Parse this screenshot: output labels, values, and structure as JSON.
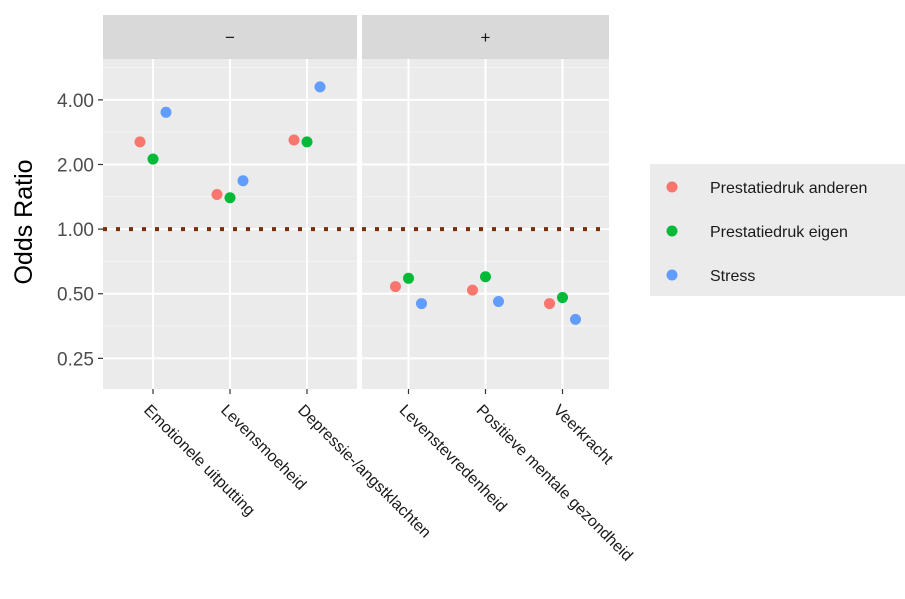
{
  "chart_data": {
    "type": "scatter",
    "ylabel": "Odds Ratio",
    "y_scale": "log2",
    "ylim": [
      0.18,
      6.2
    ],
    "yticks": [
      0.25,
      0.5,
      1.0,
      2.0,
      4.0
    ],
    "ytick_labels": [
      "0.25",
      "0.50",
      "1.00",
      "2.00",
      "4.00"
    ],
    "reference_line": {
      "y": 1.0,
      "style": "dotted",
      "color": "#7a2e0b"
    },
    "legend_position": "right",
    "grid": true,
    "series": [
      {
        "name": "Prestatiedruk anderen",
        "color": "#f8766d"
      },
      {
        "name": "Prestatiedruk eigen",
        "color": "#00ba38"
      },
      {
        "name": "Stress",
        "color": "#619cff"
      }
    ],
    "facets": [
      {
        "label": "−",
        "categories": [
          "Emotionele uitputting",
          "Levensmoeheid",
          "Depressie-/angstklachten"
        ],
        "values": [
          [
            2.55,
            2.12,
            3.5
          ],
          [
            1.45,
            1.4,
            1.68
          ],
          [
            2.6,
            2.55,
            4.6
          ]
        ]
      },
      {
        "label": "+",
        "categories": [
          "Levenstevredenheid",
          "Positieve mentale gezondheid",
          "Veerkracht"
        ],
        "values": [
          [
            0.54,
            0.59,
            0.45
          ],
          [
            0.52,
            0.6,
            0.46
          ],
          [
            0.45,
            0.48,
            0.38
          ]
        ]
      }
    ]
  }
}
